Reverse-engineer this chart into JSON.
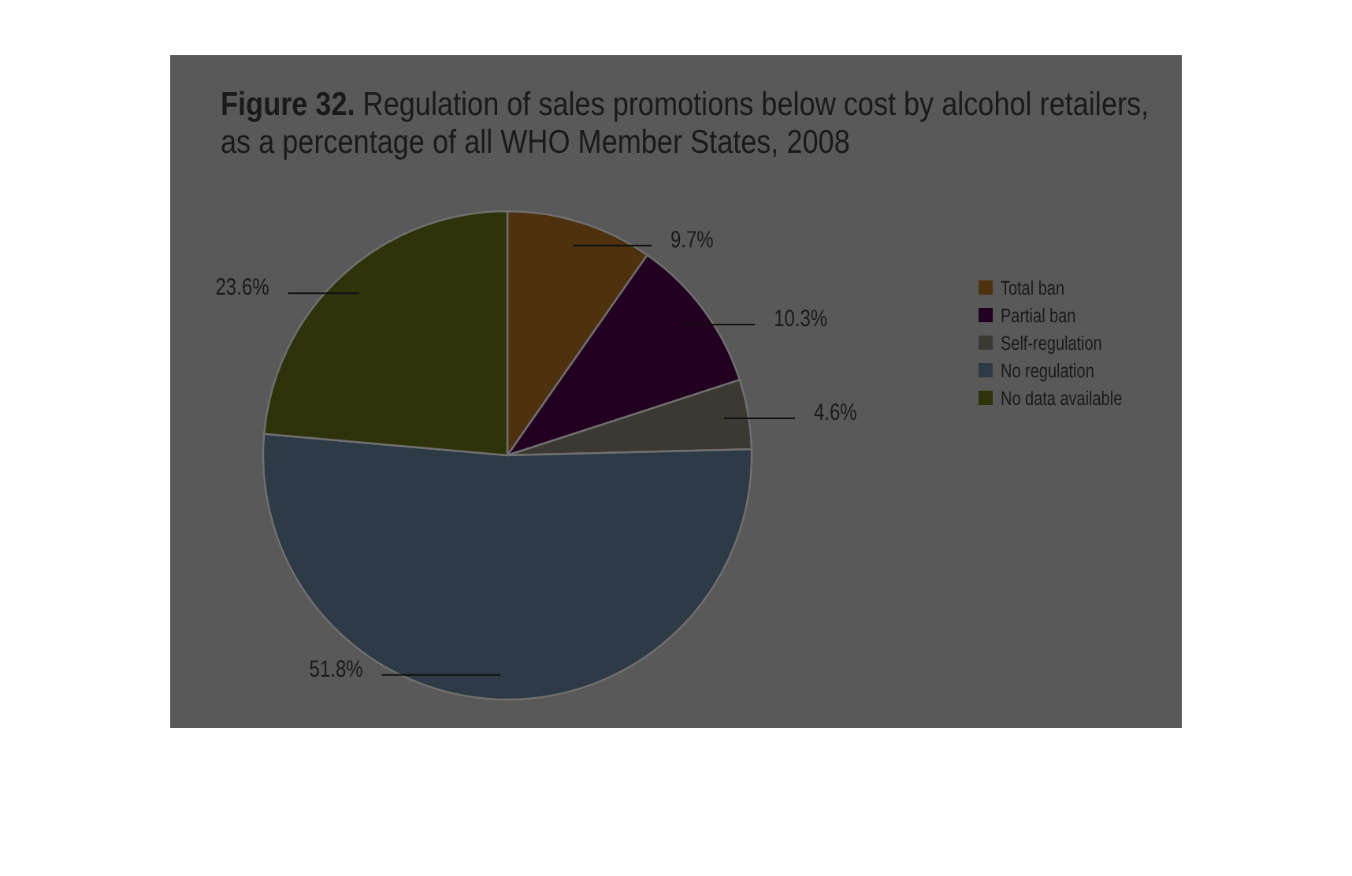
{
  "chart_data": {
    "type": "pie",
    "title": "Figure 32. Regulation of sales promotions below cost by alcohol retailers, as a percentage of all WHO Member States, 2008",
    "categories": [
      "Total ban",
      "Partial ban",
      "Self-regulation",
      "No regulation",
      "No data available"
    ],
    "values": [
      9.7,
      10.3,
      4.6,
      51.8,
      23.6
    ],
    "value_labels": [
      "9.7%",
      "10.3%",
      "4.6%",
      "51.8%",
      "23.6%"
    ],
    "colors": [
      "#4e3210",
      "#220020",
      "#3c3833",
      "#2e3a45",
      "#2f330c"
    ],
    "legend": "right"
  }
}
